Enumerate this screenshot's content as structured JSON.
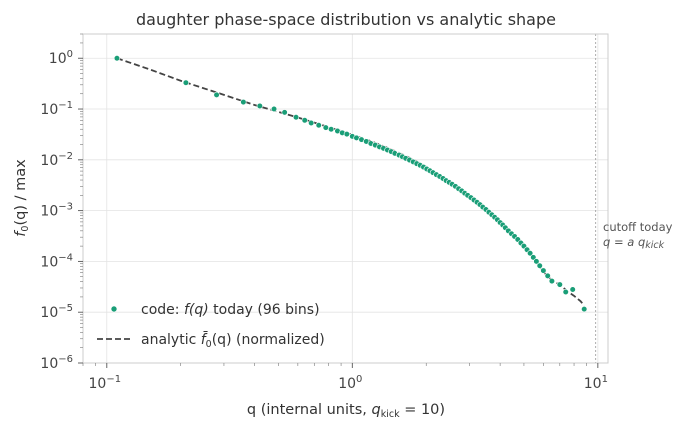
{
  "chart_data": {
    "type": "scatter",
    "title": "daughter phase-space distribution vs analytic shape",
    "xlabel": {
      "pre": "q (internal units, ",
      "math": "q",
      "sub": "kick",
      "post": " = 10)"
    },
    "ylabel": {
      "func": "f",
      "sub": "0",
      "arg": "(q) / max"
    },
    "x_scale": "log",
    "y_scale": "log",
    "xlim": [
      0.08,
      11.0
    ],
    "ylim": [
      1e-06,
      3.0
    ],
    "grid": true,
    "legend_position": "lower-left",
    "x_ticks": [
      {
        "value": 0.1,
        "base": "10",
        "exp": "−1"
      },
      {
        "value": 1,
        "base": "10",
        "exp": "0"
      },
      {
        "value": 10,
        "base": "10",
        "exp": "1"
      }
    ],
    "y_ticks": [
      {
        "value": 1,
        "base": "10",
        "exp": "0"
      },
      {
        "value": 0.1,
        "base": "10",
        "exp": "−1"
      },
      {
        "value": 0.01,
        "base": "10",
        "exp": "−2"
      },
      {
        "value": 0.001,
        "base": "10",
        "exp": "−3"
      },
      {
        "value": 0.0001,
        "base": "10",
        "exp": "−4"
      },
      {
        "value": 1e-05,
        "base": "10",
        "exp": "−5"
      },
      {
        "value": 1e-06,
        "base": "10",
        "exp": "−6"
      }
    ],
    "series": [
      {
        "name": "code: f(q) today (96 bins)",
        "legend": {
          "pre": "code: ",
          "math": "f(q)",
          "post": " today (96 bins)"
        },
        "kind": "scatter",
        "color": "#1a9e77",
        "points": [
          [
            0.11,
            1.0
          ],
          [
            0.21,
            0.33
          ],
          [
            0.28,
            0.19
          ],
          [
            0.36,
            0.137
          ],
          [
            0.42,
            0.115
          ],
          [
            0.48,
            0.1
          ],
          [
            0.53,
            0.086
          ],
          [
            0.59,
            0.069
          ],
          [
            0.64,
            0.06
          ],
          [
            0.68,
            0.053
          ],
          [
            0.73,
            0.048
          ],
          [
            0.78,
            0.043
          ],
          [
            0.82,
            0.04
          ],
          [
            0.87,
            0.037
          ],
          [
            0.91,
            0.034
          ],
          [
            0.95,
            0.032
          ],
          [
            1.0,
            0.029
          ],
          [
            1.04,
            0.027
          ],
          [
            1.09,
            0.025
          ],
          [
            1.14,
            0.023
          ],
          [
            1.19,
            0.021
          ],
          [
            1.24,
            0.0195
          ],
          [
            1.29,
            0.018
          ],
          [
            1.34,
            0.0168
          ],
          [
            1.39,
            0.0156
          ],
          [
            1.44,
            0.0145
          ],
          [
            1.49,
            0.0134
          ],
          [
            1.55,
            0.0124
          ],
          [
            1.6,
            0.0115
          ],
          [
            1.65,
            0.0107
          ],
          [
            1.71,
            0.0099
          ],
          [
            1.77,
            0.0091
          ],
          [
            1.83,
            0.0084
          ],
          [
            1.89,
            0.0078
          ],
          [
            1.95,
            0.0072
          ],
          [
            2.01,
            0.0066
          ],
          [
            2.07,
            0.0061
          ],
          [
            2.13,
            0.0056
          ],
          [
            2.2,
            0.0051
          ],
          [
            2.27,
            0.0047
          ],
          [
            2.34,
            0.0043
          ],
          [
            2.41,
            0.0039
          ],
          [
            2.48,
            0.0036
          ],
          [
            2.55,
            0.0033
          ],
          [
            2.63,
            0.003
          ],
          [
            2.71,
            0.0027
          ],
          [
            2.79,
            0.00245
          ],
          [
            2.87,
            0.0022
          ],
          [
            2.95,
            0.002
          ],
          [
            3.04,
            0.0018
          ],
          [
            3.13,
            0.00162
          ],
          [
            3.22,
            0.00146
          ],
          [
            3.31,
            0.00131
          ],
          [
            3.4,
            0.00117
          ],
          [
            3.5,
            0.00105
          ],
          [
            3.6,
            0.00093
          ],
          [
            3.7,
            0.00083
          ],
          [
            3.8,
            0.00074
          ],
          [
            3.9,
            0.00066
          ],
          [
            4.0,
            0.00058
          ],
          [
            4.1,
            0.00052
          ],
          [
            4.2,
            0.00046
          ],
          [
            4.32,
            0.0004
          ],
          [
            4.45,
            0.00035
          ],
          [
            4.58,
            0.00031
          ],
          [
            4.72,
            0.00027
          ],
          [
            4.86,
            0.00023
          ],
          [
            5.0,
            0.0002
          ],
          [
            5.15,
            0.00017
          ],
          [
            5.3,
            0.000145
          ],
          [
            5.46,
            0.00012
          ],
          [
            5.62,
            0.0001
          ],
          [
            5.8,
            8.2e-05
          ],
          [
            6.0,
            6.6e-05
          ],
          [
            6.25,
            5.2e-05
          ],
          [
            6.5,
            4.1e-05
          ],
          [
            7.0,
            3.5e-05
          ],
          [
            7.4,
            2.5e-05
          ],
          [
            7.9,
            2.8e-05
          ],
          [
            8.8,
            1.15e-05
          ]
        ]
      },
      {
        "name": "analytic f̄0(q) (normalized)",
        "legend": {
          "pre": "analytic ",
          "math": "f̄",
          "sub": "0",
          "post2": "(q) (normalized)"
        },
        "kind": "line",
        "style": "dashed",
        "color": "#444444",
        "points": [
          [
            0.11,
            1.0
          ],
          [
            0.15,
            0.6
          ],
          [
            0.2,
            0.36
          ],
          [
            0.3,
            0.19
          ],
          [
            0.4,
            0.12
          ],
          [
            0.5,
            0.088
          ],
          [
            0.6,
            0.068
          ],
          [
            0.7,
            0.054
          ],
          [
            0.8,
            0.044
          ],
          [
            0.9,
            0.037
          ],
          [
            1.0,
            0.031
          ],
          [
            1.2,
            0.023
          ],
          [
            1.4,
            0.017
          ],
          [
            1.6,
            0.0128
          ],
          [
            1.8,
            0.0097
          ],
          [
            2.0,
            0.0073
          ],
          [
            2.2,
            0.0055
          ],
          [
            2.5,
            0.0036
          ],
          [
            2.8,
            0.0024
          ],
          [
            3.0,
            0.0019
          ],
          [
            3.5,
            0.00107
          ],
          [
            4.0,
            0.00059
          ],
          [
            4.5,
            0.00033
          ],
          [
            5.0,
            0.00019
          ],
          [
            5.5,
            0.000108
          ],
          [
            6.0,
            6.3e-05
          ],
          [
            6.5,
            4.2e-05
          ],
          [
            7.0,
            3.5e-05
          ],
          [
            7.5,
            2.6e-05
          ],
          [
            8.0,
            2.1e-05
          ],
          [
            8.5,
            1.65e-05
          ],
          [
            8.8,
            1.35e-05
          ]
        ]
      }
    ],
    "annotation": {
      "line1": "cutoff today",
      "line2": {
        "math": "q = a q",
        "sub": "kick"
      },
      "x": 9.8
    }
  }
}
